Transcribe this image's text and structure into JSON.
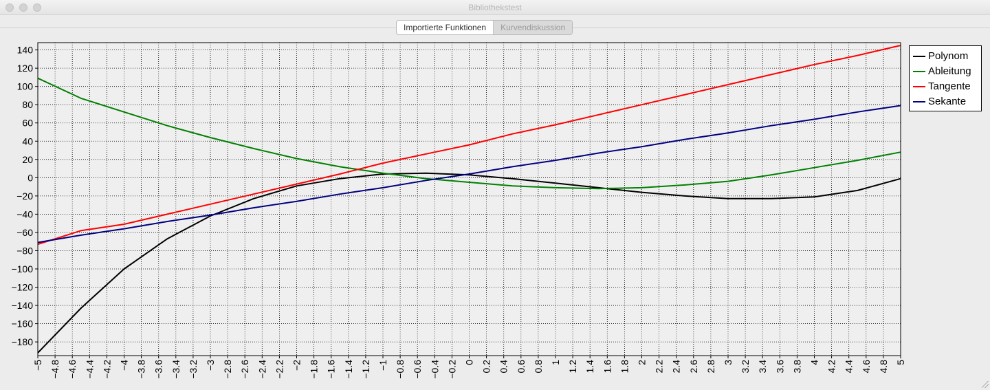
{
  "window": {
    "title": "Bibliothekstest"
  },
  "tabs": [
    {
      "label": "Importierte Funktionen",
      "active": false
    },
    {
      "label": "Kurvendiskussion",
      "active": true
    }
  ],
  "chart_data": {
    "type": "line",
    "xlim": [
      -5,
      5
    ],
    "ylim": [
      -195,
      148
    ],
    "x_ticks": [
      -5,
      -4.8,
      -4.6,
      -4.4,
      -4.2,
      -4,
      -3.8,
      -3.6,
      -3.4,
      -3.2,
      -3,
      -2.8,
      -2.6,
      -2.4,
      -2.2,
      -2,
      -1.8,
      -1.6,
      -1.4,
      -1.2,
      -1,
      -0.8,
      -0.6,
      -0.4,
      -0.2,
      0,
      0.2,
      0.4,
      0.6,
      0.8,
      1,
      1.2,
      1.4,
      1.6,
      1.8,
      2,
      2.2,
      2.4,
      2.6,
      2.8,
      3,
      3.2,
      3.4,
      3.6,
      3.8,
      4,
      4.2,
      4.4,
      4.6,
      4.8,
      5
    ],
    "y_ticks": [
      140,
      120,
      100,
      80,
      60,
      40,
      20,
      0,
      -20,
      -40,
      -60,
      -80,
      -100,
      -120,
      -140,
      -160,
      -180
    ],
    "grid": true,
    "legend_position": "top-right outside",
    "x": [
      -5,
      -4.5,
      -4,
      -3.5,
      -3,
      -2.5,
      -2,
      -1.5,
      -1,
      -0.5,
      0,
      0.5,
      1,
      1.5,
      2,
      2.5,
      3,
      3.5,
      4,
      4.5,
      5
    ],
    "series": [
      {
        "name": "Polynom",
        "color": "#000000",
        "values": [
          -192,
          -143,
          -100,
          -67,
          -42,
          -23,
          -9,
          -1,
          4,
          5,
          3,
          -1,
          -6,
          -11,
          -16,
          -20,
          -23,
          -23,
          -21,
          -14,
          -1
        ]
      },
      {
        "name": "Ableitung",
        "color": "#008000",
        "values": [
          109,
          87,
          72,
          57,
          44,
          32,
          21,
          12,
          5,
          -1,
          -5,
          -9,
          -11,
          -12,
          -11,
          -8,
          -4,
          3,
          11,
          19,
          28
        ]
      },
      {
        "name": "Tangente",
        "color": "#ff0000",
        "values": [
          -73,
          -58,
          -51,
          -40,
          -29,
          -18,
          -7,
          4,
          16,
          26,
          36,
          48,
          58,
          69,
          80,
          91,
          102,
          113,
          124,
          134,
          145
        ]
      },
      {
        "name": "Sekante",
        "color": "#000080",
        "values": [
          -71,
          -63,
          -56,
          -48,
          -41,
          -33,
          -26,
          -18,
          -11,
          -3,
          4,
          12,
          19,
          27,
          34,
          42,
          49,
          57,
          64,
          72,
          79
        ]
      }
    ]
  }
}
